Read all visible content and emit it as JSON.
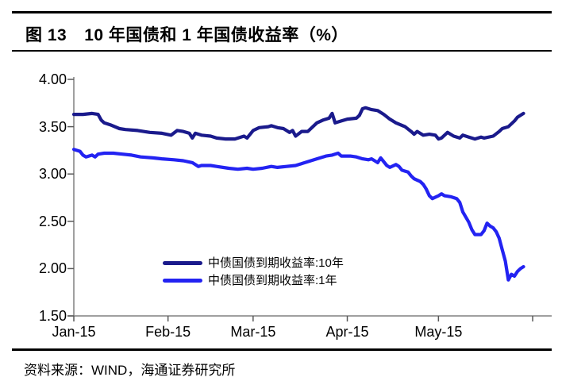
{
  "header": {
    "figure_label": "图 13",
    "title": "10 年国债和 1 年国债收益率（%）"
  },
  "footer": {
    "source": "资料来源：WIND，海通证券研究所"
  },
  "colors": {
    "series_10y": "#1a1a8c",
    "series_1y": "#2323f2",
    "axis": "#808080",
    "tick": "#595959",
    "text": "#000000",
    "rule": "#000000"
  },
  "chart_data": {
    "type": "line",
    "title": "10 年国债和 1 年国债收益率（%）",
    "xlabel": "",
    "ylabel": "",
    "ylim": [
      1.5,
      4.0
    ],
    "yticks": [
      4.0,
      3.5,
      3.0,
      2.5,
      2.0,
      1.5
    ],
    "ytick_labels": [
      "4.00",
      "3.50",
      "3.00",
      "2.50",
      "2.00",
      "1.50"
    ],
    "xticks": [
      "Jan-15",
      "Feb-15",
      "Mar-15",
      "Apr-15",
      "May-15"
    ],
    "grid": false,
    "legend_position": "inside-bottom-center",
    "series": [
      {
        "name": "中债国债到期收益率:10年",
        "color_key": "series_10y",
        "points": [
          [
            "2015-01-01",
            3.63
          ],
          [
            "2015-01-04",
            3.63
          ],
          [
            "2015-01-07",
            3.64
          ],
          [
            "2015-01-09",
            3.63
          ],
          [
            "2015-01-10",
            3.57
          ],
          [
            "2015-01-11",
            3.54
          ],
          [
            "2015-01-13",
            3.52
          ],
          [
            "2015-01-16",
            3.48
          ],
          [
            "2015-01-18",
            3.47
          ],
          [
            "2015-01-22",
            3.46
          ],
          [
            "2015-01-26",
            3.44
          ],
          [
            "2015-01-30",
            3.43
          ],
          [
            "2015-02-02",
            3.41
          ],
          [
            "2015-02-04",
            3.46
          ],
          [
            "2015-02-06",
            3.45
          ],
          [
            "2015-02-08",
            3.43
          ],
          [
            "2015-02-09",
            3.38
          ],
          [
            "2015-02-10",
            3.43
          ],
          [
            "2015-02-12",
            3.41
          ],
          [
            "2015-02-15",
            3.4
          ],
          [
            "2015-02-17",
            3.38
          ],
          [
            "2015-02-20",
            3.37
          ],
          [
            "2015-02-23",
            3.37
          ],
          [
            "2015-02-26",
            3.4
          ],
          [
            "2015-02-27",
            3.38
          ],
          [
            "2015-03-01",
            3.46
          ],
          [
            "2015-03-03",
            3.49
          ],
          [
            "2015-03-06",
            3.5
          ],
          [
            "2015-03-07",
            3.51
          ],
          [
            "2015-03-09",
            3.49
          ],
          [
            "2015-03-11",
            3.48
          ],
          [
            "2015-03-13",
            3.44
          ],
          [
            "2015-03-14",
            3.46
          ],
          [
            "2015-03-15",
            3.4
          ],
          [
            "2015-03-17",
            3.45
          ],
          [
            "2015-03-19",
            3.45
          ],
          [
            "2015-03-20",
            3.48
          ],
          [
            "2015-03-22",
            3.54
          ],
          [
            "2015-03-24",
            3.57
          ],
          [
            "2015-03-26",
            3.59
          ],
          [
            "2015-03-27",
            3.64
          ],
          [
            "2015-03-28",
            3.54
          ],
          [
            "2015-03-30",
            3.56
          ],
          [
            "2015-04-01",
            3.58
          ],
          [
            "2015-04-04",
            3.59
          ],
          [
            "2015-04-05",
            3.62
          ],
          [
            "2015-04-06",
            3.69
          ],
          [
            "2015-04-07",
            3.7
          ],
          [
            "2015-04-09",
            3.68
          ],
          [
            "2015-04-11",
            3.67
          ],
          [
            "2015-04-13",
            3.63
          ],
          [
            "2015-04-15",
            3.58
          ],
          [
            "2015-04-17",
            3.54
          ],
          [
            "2015-04-20",
            3.5
          ],
          [
            "2015-04-22",
            3.45
          ],
          [
            "2015-04-23",
            3.42
          ],
          [
            "2015-04-24",
            3.45
          ],
          [
            "2015-04-26",
            3.41
          ],
          [
            "2015-04-28",
            3.42
          ],
          [
            "2015-04-30",
            3.41
          ],
          [
            "2015-05-01",
            3.37
          ],
          [
            "2015-05-02",
            3.38
          ],
          [
            "2015-05-04",
            3.44
          ],
          [
            "2015-05-06",
            3.4
          ],
          [
            "2015-05-08",
            3.38
          ],
          [
            "2015-05-09",
            3.41
          ],
          [
            "2015-05-11",
            3.39
          ],
          [
            "2015-05-13",
            3.37
          ],
          [
            "2015-05-15",
            3.39
          ],
          [
            "2015-05-16",
            3.38
          ],
          [
            "2015-05-19",
            3.4
          ],
          [
            "2015-05-21",
            3.45
          ],
          [
            "2015-05-22",
            3.48
          ],
          [
            "2015-05-24",
            3.5
          ],
          [
            "2015-05-26",
            3.56
          ],
          [
            "2015-05-27",
            3.6
          ],
          [
            "2015-05-29",
            3.64
          ]
        ]
      },
      {
        "name": "中债国债到期收益率:1年",
        "color_key": "series_1y",
        "points": [
          [
            "2015-01-01",
            3.26
          ],
          [
            "2015-01-03",
            3.24
          ],
          [
            "2015-01-04",
            3.2
          ],
          [
            "2015-01-05",
            3.18
          ],
          [
            "2015-01-07",
            3.2
          ],
          [
            "2015-01-08",
            3.18
          ],
          [
            "2015-01-09",
            3.21
          ],
          [
            "2015-01-11",
            3.22
          ],
          [
            "2015-01-14",
            3.22
          ],
          [
            "2015-01-17",
            3.21
          ],
          [
            "2015-01-20",
            3.2
          ],
          [
            "2015-01-23",
            3.18
          ],
          [
            "2015-01-27",
            3.17
          ],
          [
            "2015-01-30",
            3.16
          ],
          [
            "2015-02-03",
            3.15
          ],
          [
            "2015-02-06",
            3.14
          ],
          [
            "2015-02-09",
            3.12
          ],
          [
            "2015-02-11",
            3.08
          ],
          [
            "2015-02-12",
            3.09
          ],
          [
            "2015-02-15",
            3.09
          ],
          [
            "2015-02-17",
            3.08
          ],
          [
            "2015-02-21",
            3.06
          ],
          [
            "2015-02-24",
            3.05
          ],
          [
            "2015-02-27",
            3.06
          ],
          [
            "2015-03-01",
            3.05
          ],
          [
            "2015-03-04",
            3.06
          ],
          [
            "2015-03-07",
            3.08
          ],
          [
            "2015-03-09",
            3.07
          ],
          [
            "2015-03-12",
            3.08
          ],
          [
            "2015-03-15",
            3.09
          ],
          [
            "2015-03-17",
            3.11
          ],
          [
            "2015-03-20",
            3.14
          ],
          [
            "2015-03-22",
            3.16
          ],
          [
            "2015-03-25",
            3.19
          ],
          [
            "2015-03-27",
            3.2
          ],
          [
            "2015-03-29",
            3.22
          ],
          [
            "2015-03-30",
            3.19
          ],
          [
            "2015-04-02",
            3.19
          ],
          [
            "2015-04-04",
            3.18
          ],
          [
            "2015-04-06",
            3.16
          ],
          [
            "2015-04-08",
            3.15
          ],
          [
            "2015-04-09",
            3.16
          ],
          [
            "2015-04-11",
            3.12
          ],
          [
            "2015-04-12",
            3.17
          ],
          [
            "2015-04-14",
            3.09
          ],
          [
            "2015-04-15",
            3.07
          ],
          [
            "2015-04-17",
            3.1
          ],
          [
            "2015-04-18",
            3.08
          ],
          [
            "2015-04-19",
            3.04
          ],
          [
            "2015-04-21",
            3.02
          ],
          [
            "2015-04-22",
            2.98
          ],
          [
            "2015-04-23",
            2.95
          ],
          [
            "2015-04-25",
            2.92
          ],
          [
            "2015-04-26",
            2.89
          ],
          [
            "2015-04-27",
            2.84
          ],
          [
            "2015-04-28",
            2.77
          ],
          [
            "2015-04-29",
            2.74
          ],
          [
            "2015-05-01",
            2.77
          ],
          [
            "2015-05-02",
            2.79
          ],
          [
            "2015-05-03",
            2.77
          ],
          [
            "2015-05-05",
            2.76
          ],
          [
            "2015-05-07",
            2.74
          ],
          [
            "2015-05-08",
            2.7
          ],
          [
            "2015-05-09",
            2.6
          ],
          [
            "2015-05-11",
            2.49
          ],
          [
            "2015-05-12",
            2.41
          ],
          [
            "2015-05-13",
            2.36
          ],
          [
            "2015-05-15",
            2.36
          ],
          [
            "2015-05-16",
            2.4
          ],
          [
            "2015-05-17",
            2.48
          ],
          [
            "2015-05-18",
            2.45
          ],
          [
            "2015-05-19",
            2.43
          ],
          [
            "2015-05-20",
            2.39
          ],
          [
            "2015-05-21",
            2.32
          ],
          [
            "2015-05-22",
            2.2
          ],
          [
            "2015-05-23",
            2.08
          ],
          [
            "2015-05-24",
            1.88
          ],
          [
            "2015-05-25",
            1.94
          ],
          [
            "2015-05-26",
            1.92
          ],
          [
            "2015-05-27",
            1.97
          ],
          [
            "2015-05-28",
            2.0
          ],
          [
            "2015-05-29",
            2.02
          ]
        ]
      }
    ]
  }
}
